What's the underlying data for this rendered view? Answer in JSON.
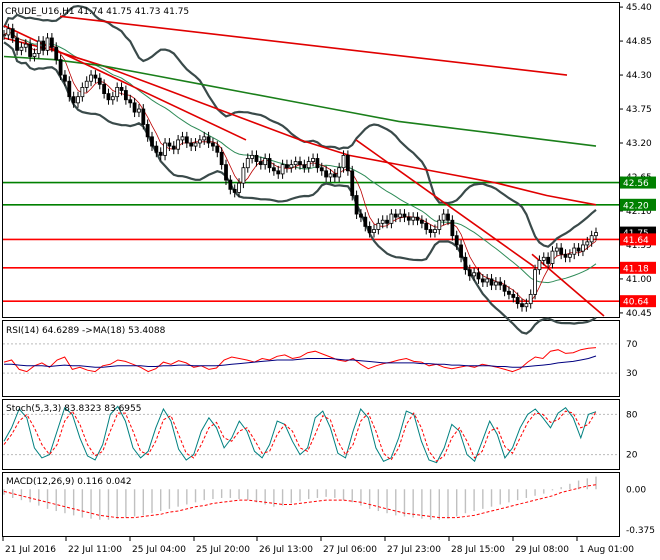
{
  "chart_data": [
    {
      "type": "line",
      "panel": "price",
      "title": "CRUDE_U16,H1 41.74 41.75 41.73 41.75",
      "symbol": "CRUDE_U16,H1",
      "ohlc": [
        "41.74",
        "41.75",
        "41.73",
        "41.75"
      ],
      "ylim": [
        40.4,
        45.45
      ],
      "y_ticks": [
        "45.40",
        "44.85",
        "44.30",
        "43.75",
        "43.20",
        "42.65",
        "42.10",
        "41.55",
        "41.00",
        "40.45"
      ],
      "x_ticks": [
        "21 Jul 2016",
        "22 Jul 11:00",
        "25 Jul 04:00",
        "25 Jul 20:00",
        "26 Jul 13:00",
        "27 Jul 06:00",
        "27 Jul 23:00",
        "28 Jul 15:00",
        "29 Jul 08:00",
        "1 Aug 01:00"
      ],
      "price_levels": [
        {
          "label": "42.56",
          "value": 42.56,
          "color": "#008000"
        },
        {
          "label": "42.20",
          "value": 42.2,
          "color": "#008000"
        },
        {
          "label": "41.75",
          "value": 41.75,
          "color": "#000000"
        },
        {
          "label": "41.64",
          "value": 41.64,
          "color": "#ff0000"
        },
        {
          "label": "41.18",
          "value": 41.18,
          "color": "#ff0000"
        },
        {
          "label": "40.64",
          "value": 40.64,
          "color": "#ff0000"
        }
      ],
      "close_series": [
        44.95,
        45.05,
        44.9,
        44.7,
        44.75,
        44.8,
        44.6,
        44.65,
        44.85,
        44.7,
        44.9,
        44.75,
        44.55,
        44.3,
        44.2,
        43.95,
        43.85,
        43.95,
        44.1,
        44.2,
        44.3,
        44.25,
        44.15,
        44.0,
        43.9,
        43.95,
        44.1,
        44.05,
        43.9,
        43.85,
        43.7,
        43.75,
        43.5,
        43.3,
        43.15,
        43.05,
        43.0,
        43.2,
        43.15,
        43.1,
        43.25,
        43.3,
        43.2,
        43.15,
        43.2,
        43.25,
        43.3,
        43.2,
        43.15,
        43.05,
        42.85,
        42.6,
        42.45,
        42.4,
        42.55,
        42.8,
        42.95,
        43.0,
        42.9,
        42.85,
        42.95,
        42.8,
        42.75,
        42.7,
        42.85,
        42.8,
        42.85,
        42.9,
        42.85,
        42.8,
        42.9,
        42.95,
        42.8,
        42.75,
        42.65,
        42.7,
        42.65,
        42.8,
        43.0,
        42.75,
        42.35,
        42.05,
        42.0,
        41.85,
        41.75,
        41.8,
        41.9,
        41.95,
        41.9,
        42.05,
        42.0,
        42.05,
        42.0,
        41.95,
        42.0,
        41.95,
        41.9,
        41.8,
        41.75,
        41.8,
        41.95,
        42.05,
        41.95,
        41.7,
        41.55,
        41.35,
        41.15,
        41.05,
        41.1,
        41.0,
        40.95,
        41.0,
        40.9,
        40.95,
        40.9,
        40.8,
        40.75,
        40.7,
        40.6,
        40.55,
        40.6,
        40.75,
        41.15,
        41.3,
        41.35,
        41.25,
        41.45,
        41.5,
        41.4,
        41.35,
        41.4,
        41.5,
        41.45,
        41.55,
        41.6,
        41.7,
        41.75
      ],
      "sma_green_series": [
        44.6,
        44.55,
        44.45,
        44.3,
        44.15,
        44.0,
        43.85,
        43.7,
        43.55,
        43.45,
        43.35,
        43.25,
        43.15
      ],
      "sma_red_series": [
        44.9,
        44.7,
        44.45,
        44.15,
        43.85,
        43.55,
        43.25,
        43.0,
        42.85,
        42.7,
        42.55,
        42.35,
        42.2
      ],
      "upper_channel_start": 45.25,
      "upper_channel_end": 44.3,
      "downtrend_lines": [
        {
          "start": 45.1,
          "end": 43.25
        },
        {
          "start": 43.25,
          "end": 41.2
        },
        {
          "start": 41.4,
          "end": 40.4
        }
      ],
      "bollinger": {
        "period": 20,
        "deviation": 2
      }
    },
    {
      "type": "line",
      "panel": "rsi",
      "title": "RSI(14) 64.6289 ->MA(18) 53.4088",
      "ylim": [
        0,
        100
      ],
      "y_ticks": [
        "70",
        "30"
      ],
      "series": [
        {
          "name": "RSI(14)",
          "color": "#ff0000",
          "values": [
            45,
            48,
            35,
            32,
            40,
            44,
            38,
            48,
            52,
            35,
            38,
            34,
            32,
            40,
            42,
            48,
            46,
            42,
            38,
            32,
            36,
            45,
            42,
            47,
            44,
            38,
            40,
            35,
            37,
            48,
            52,
            50,
            48,
            45,
            50,
            48,
            53,
            55,
            50,
            52,
            58,
            60,
            56,
            52,
            48,
            46,
            50,
            42,
            36,
            40,
            43,
            45,
            48,
            50,
            46,
            45,
            40,
            42,
            38,
            36,
            38,
            40,
            38,
            42,
            40,
            38,
            35,
            32,
            36,
            45,
            52,
            50,
            60,
            62,
            57,
            58,
            62,
            64,
            65
          ]
        },
        {
          "name": "MA(18)",
          "color": "#000080",
          "values": [
            42,
            42,
            41,
            40,
            40,
            40,
            39,
            40,
            41,
            40,
            40,
            39,
            38,
            38,
            39,
            40,
            40,
            40,
            40,
            39,
            39,
            40,
            40,
            41,
            41,
            40,
            40,
            40,
            40,
            41,
            42,
            43,
            44,
            45,
            46,
            47,
            48,
            48,
            48,
            49,
            50,
            50,
            50,
            50,
            49,
            48,
            48,
            47,
            46,
            45,
            44,
            44,
            44,
            44,
            44,
            43,
            43,
            42,
            42,
            41,
            41,
            40,
            40,
            40,
            40,
            39,
            39,
            38,
            38,
            39,
            40,
            41,
            42,
            44,
            45,
            46,
            48,
            50,
            53.4
          ]
        }
      ]
    },
    {
      "type": "line",
      "panel": "stochastic",
      "title": "Stoch(5,3,3) 83.8323 83.6955",
      "ylim": [
        0,
        100
      ],
      "y_ticks": [
        "80",
        "20"
      ],
      "series": [
        {
          "name": "%K",
          "color": "#008080",
          "values": [
            40,
            60,
            88,
            75,
            30,
            15,
            20,
            55,
            90,
            80,
            45,
            18,
            12,
            35,
            80,
            92,
            70,
            30,
            15,
            25,
            60,
            88,
            70,
            28,
            12,
            20,
            55,
            75,
            60,
            30,
            45,
            70,
            55,
            25,
            15,
            35,
            70,
            65,
            40,
            20,
            30,
            75,
            85,
            60,
            22,
            15,
            55,
            88,
            75,
            30,
            10,
            15,
            45,
            85,
            80,
            40,
            12,
            8,
            30,
            65,
            55,
            20,
            10,
            40,
            70,
            50,
            15,
            30,
            60,
            80,
            88,
            75,
            60,
            82,
            90,
            75,
            45,
            80,
            84
          ]
        },
        {
          "name": "%D",
          "color": "#ff0000",
          "values": [
            35,
            50,
            70,
            80,
            60,
            35,
            20,
            35,
            70,
            85,
            65,
            35,
            18,
            25,
            55,
            82,
            82,
            55,
            25,
            20,
            40,
            72,
            78,
            50,
            22,
            15,
            35,
            60,
            68,
            45,
            40,
            55,
            60,
            42,
            22,
            25,
            50,
            65,
            55,
            30,
            25,
            50,
            78,
            72,
            40,
            20,
            35,
            70,
            82,
            55,
            22,
            12,
            30,
            65,
            82,
            60,
            25,
            10,
            18,
            45,
            60,
            40,
            15,
            25,
            55,
            60,
            32,
            22,
            45,
            68,
            82,
            80,
            68,
            72,
            85,
            82,
            60,
            65,
            84
          ]
        }
      ]
    },
    {
      "type": "bar",
      "panel": "macd",
      "title": "MACD(12,26,9) 0.116 0.042",
      "ylim": [
        -0.42,
        0.14
      ],
      "y_ticks": [
        "0.00",
        "-0.375"
      ],
      "series": [
        {
          "name": "MACD",
          "color": "#c0c0c0",
          "values": [
            -0.05,
            -0.08,
            -0.1,
            -0.12,
            -0.15,
            -0.18,
            -0.2,
            -0.22,
            -0.24,
            -0.26,
            -0.27,
            -0.28,
            -0.28,
            -0.27,
            -0.26,
            -0.25,
            -0.24,
            -0.22,
            -0.2,
            -0.18,
            -0.16,
            -0.14,
            -0.12,
            -0.1,
            -0.09,
            -0.08,
            -0.08,
            -0.09,
            -0.1,
            -0.12,
            -0.14,
            -0.16,
            -0.15,
            -0.13,
            -0.11,
            -0.09,
            -0.08,
            -0.07,
            -0.08,
            -0.1,
            -0.12,
            -0.15,
            -0.18,
            -0.2,
            -0.22,
            -0.24,
            -0.25,
            -0.26,
            -0.27,
            -0.28,
            -0.28,
            -0.27,
            -0.25,
            -0.22,
            -0.2,
            -0.18,
            -0.16,
            -0.14,
            -0.12,
            -0.1,
            -0.08,
            -0.06,
            -0.04,
            -0.01,
            0.02,
            0.05,
            0.08,
            0.1,
            0.116
          ]
        },
        {
          "name": "Signal",
          "color": "#ff0000",
          "values": [
            -0.02,
            -0.04,
            -0.06,
            -0.08,
            -0.1,
            -0.12,
            -0.14,
            -0.16,
            -0.18,
            -0.2,
            -0.22,
            -0.24,
            -0.25,
            -0.26,
            -0.26,
            -0.26,
            -0.25,
            -0.24,
            -0.23,
            -0.21,
            -0.2,
            -0.18,
            -0.16,
            -0.15,
            -0.13,
            -0.12,
            -0.11,
            -0.1,
            -0.1,
            -0.11,
            -0.12,
            -0.13,
            -0.14,
            -0.14,
            -0.13,
            -0.12,
            -0.11,
            -0.1,
            -0.1,
            -0.1,
            -0.11,
            -0.12,
            -0.14,
            -0.16,
            -0.18,
            -0.2,
            -0.22,
            -0.23,
            -0.24,
            -0.25,
            -0.26,
            -0.26,
            -0.26,
            -0.25,
            -0.24,
            -0.22,
            -0.2,
            -0.18,
            -0.16,
            -0.14,
            -0.12,
            -0.1,
            -0.08,
            -0.06,
            -0.03,
            -0.01,
            0.01,
            0.03,
            0.042
          ]
        }
      ]
    }
  ]
}
